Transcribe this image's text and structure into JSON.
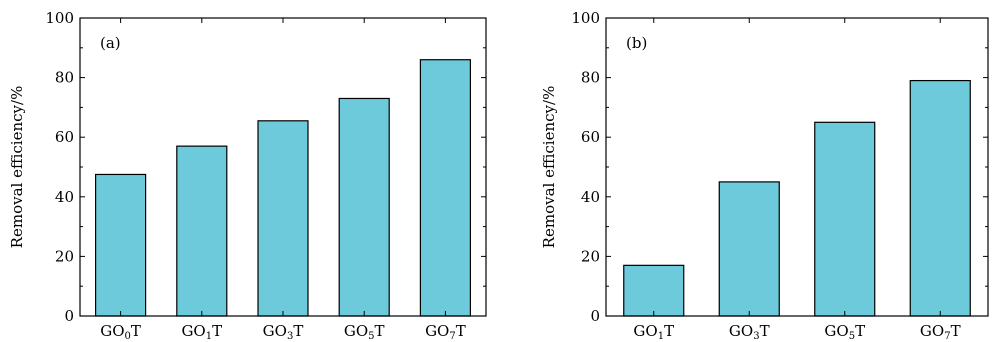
{
  "chart_data": [
    {
      "type": "bar",
      "panel_label": "(a)",
      "ylabel": "Removal efficiency/%",
      "xlabel": "",
      "ylim": [
        0,
        100
      ],
      "yticks": [
        0,
        20,
        40,
        60,
        80,
        100
      ],
      "categories": [
        {
          "base": "GO",
          "sub": "0",
          "tail": "T"
        },
        {
          "base": "GO",
          "sub": "1",
          "tail": "T"
        },
        {
          "base": "GO",
          "sub": "3",
          "tail": "T"
        },
        {
          "base": "GO",
          "sub": "5",
          "tail": "T"
        },
        {
          "base": "GO",
          "sub": "7",
          "tail": "T"
        }
      ],
      "values": [
        47.5,
        57,
        65.5,
        73,
        86
      ],
      "bar_color": "#6ccadb",
      "grid": false
    },
    {
      "type": "bar",
      "panel_label": "(b)",
      "ylabel": "Removal efficiency/%",
      "xlabel": "",
      "ylim": [
        0,
        100
      ],
      "yticks": [
        0,
        20,
        40,
        60,
        80,
        100
      ],
      "categories": [
        {
          "base": "GO",
          "sub": "1",
          "tail": "T"
        },
        {
          "base": "GO",
          "sub": "3",
          "tail": "T"
        },
        {
          "base": "GO",
          "sub": "5",
          "tail": "T"
        },
        {
          "base": "GO",
          "sub": "7",
          "tail": "T"
        }
      ],
      "values": [
        17,
        45,
        65,
        79
      ],
      "bar_color": "#6ccadb",
      "grid": false
    }
  ]
}
